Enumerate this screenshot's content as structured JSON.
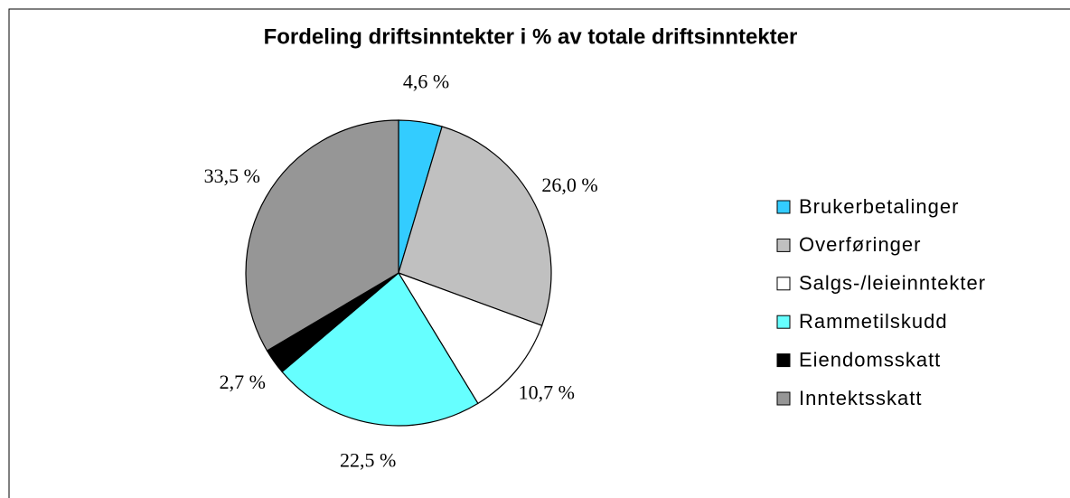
{
  "chart_data": {
    "type": "pie",
    "title": "Fordeling driftsinntekter i % av totale driftsinntekter",
    "categories": [
      "Brukerbetalinger",
      "Overføringer",
      "Salgs-/leieinntekter",
      "Rammetilskudd",
      "Eiendomsskatt",
      "Inntektsskatt"
    ],
    "values": [
      4.6,
      26.0,
      10.7,
      22.5,
      2.7,
      33.5
    ],
    "value_labels": [
      "4,6 %",
      "26,0 %",
      "10,7 %",
      "22,5 %",
      "2,7 %",
      "33,5 %"
    ],
    "colors": [
      "#33ccff",
      "#c0c0c0",
      "#ffffff",
      "#66ffff",
      "#000000",
      "#969696"
    ],
    "legend": "right"
  }
}
